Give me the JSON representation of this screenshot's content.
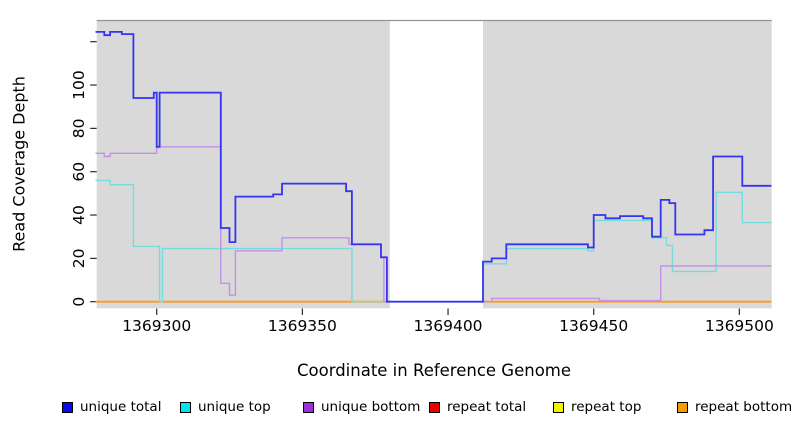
{
  "chart_data": {
    "type": "line",
    "style": "step-after",
    "title": "",
    "xlabel": "Coordinate in Reference Genome",
    "ylabel": "Read Coverage Depth",
    "x_ticks": [
      1369300,
      1369350,
      1369400,
      1369450,
      1369500
    ],
    "y_ticks": [
      0,
      20,
      40,
      60,
      80,
      100,
      120
    ],
    "y_tick_labels": [
      "0",
      "20",
      "40",
      "60",
      "80",
      "100",
      ""
    ],
    "x_range_drawn": [
      1369279,
      1369511
    ],
    "y_range_drawn": [
      -3,
      130
    ],
    "grid": false,
    "plot_background": "#d9d9d9",
    "masked_region": {
      "x_start": 1369380,
      "x_end": 1369412,
      "fill": "#ffffff"
    },
    "legend_position": "bottom",
    "legend": [
      {
        "label": "unique total",
        "swatch_color": "#0a0ae8"
      },
      {
        "label": "unique top",
        "swatch_color": "#00e6e6"
      },
      {
        "label": "unique bottom",
        "swatch_color": "#9b30d9"
      },
      {
        "label": "repeat total",
        "swatch_color": "#e60000"
      },
      {
        "label": "repeat top",
        "swatch_color": "#f2f200"
      },
      {
        "label": "repeat bottom",
        "swatch_color": "#f59b00"
      }
    ],
    "series": [
      {
        "name": "repeat total",
        "color": "#e60000",
        "width": 1.4,
        "segments": [
          [
            [
              1369279,
              0
            ],
            [
              1369380,
              0
            ]
          ],
          [
            [
              1369412,
              0
            ],
            [
              1369511,
              0
            ]
          ]
        ]
      },
      {
        "name": "repeat top",
        "color": "#f2f200",
        "width": 1.4,
        "segments": [
          [
            [
              1369279,
              0
            ],
            [
              1369380,
              0
            ]
          ],
          [
            [
              1369412,
              0
            ],
            [
              1369511,
              0
            ]
          ]
        ]
      },
      {
        "name": "repeat bottom",
        "color": "#ff9b1a",
        "width": 1.8,
        "segments": [
          [
            [
              1369279,
              0
            ],
            [
              1369380,
              0
            ]
          ],
          [
            [
              1369412,
              0
            ],
            [
              1369511,
              0
            ]
          ]
        ]
      },
      {
        "name": "unique top",
        "color": "#76dcdc",
        "width": 1.4,
        "segments": [
          [
            [
              1369279,
              56
            ],
            [
              1369284,
              54
            ],
            [
              1369292,
              25.5
            ],
            [
              1369301,
              0
            ],
            [
              1369302,
              24.5
            ],
            [
              1369367,
              0
            ],
            [
              1369412,
              17.5
            ],
            [
              1369420,
              24.5
            ],
            [
              1369448,
              23.5
            ],
            [
              1369450,
              37.5
            ],
            [
              1369470,
              29.5
            ],
            [
              1369475,
              26
            ],
            [
              1369477,
              14
            ],
            [
              1369492,
              50.5
            ],
            [
              1369501,
              36.5
            ],
            [
              1369511,
              36.5
            ]
          ]
        ]
      },
      {
        "name": "unique bottom",
        "color": "#c38fe8",
        "width": 1.4,
        "segments": [
          [
            [
              1369279,
              68.5
            ],
            [
              1369282,
              67
            ],
            [
              1369284,
              68.5
            ],
            [
              1369300,
              71.5
            ],
            [
              1369322,
              8.5
            ],
            [
              1369325,
              3
            ],
            [
              1369327,
              23.5
            ],
            [
              1369343,
              29.5
            ],
            [
              1369366,
              26.5
            ],
            [
              1369377,
              20.5
            ],
            [
              1369378,
              0
            ],
            [
              1369415,
              1.5
            ],
            [
              1369452,
              0.5
            ],
            [
              1369473,
              16.5
            ],
            [
              1369511,
              16.5
            ]
          ]
        ]
      },
      {
        "name": "unique total",
        "color": "#3434f2",
        "width": 1.8,
        "segments": [
          [
            [
              1369279,
              124.5
            ],
            [
              1369282,
              123
            ],
            [
              1369284,
              124.5
            ],
            [
              1369288,
              123.5
            ],
            [
              1369292,
              94
            ],
            [
              1369299,
              96.5
            ],
            [
              1369300,
              71.5
            ],
            [
              1369301,
              96.5
            ],
            [
              1369322,
              34
            ],
            [
              1369325,
              27.5
            ],
            [
              1369327,
              48.5
            ],
            [
              1369340,
              49.5
            ],
            [
              1369343,
              54.5
            ],
            [
              1369365,
              51
            ],
            [
              1369367,
              26.5
            ],
            [
              1369377,
              20.5
            ],
            [
              1369379,
              0
            ],
            [
              1369412,
              18.5
            ],
            [
              1369415,
              20
            ],
            [
              1369420,
              26.5
            ],
            [
              1369448,
              25
            ],
            [
              1369450,
              40
            ],
            [
              1369454,
              38.5
            ],
            [
              1369459,
              39.5
            ],
            [
              1369467,
              38.5
            ],
            [
              1369470,
              30
            ],
            [
              1369473,
              47
            ],
            [
              1369476,
              45.5
            ],
            [
              1369478,
              31
            ],
            [
              1369488,
              33
            ],
            [
              1369491,
              67
            ],
            [
              1369501,
              53.5
            ],
            [
              1369511,
              53.5
            ]
          ]
        ]
      }
    ]
  }
}
